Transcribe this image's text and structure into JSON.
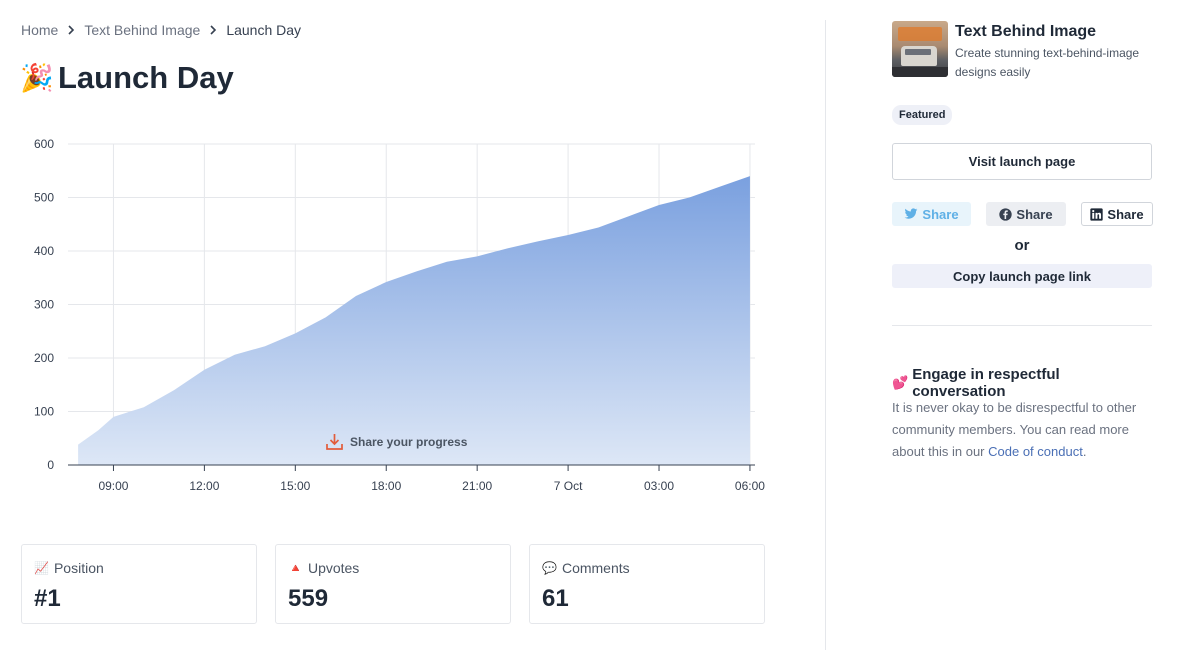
{
  "breadcrumb": {
    "items": [
      "Home",
      "Text Behind Image",
      "Launch Day"
    ]
  },
  "page": {
    "title_emoji": "🎉",
    "title": "Launch Day"
  },
  "chart_data": {
    "type": "area",
    "title": "",
    "xlabel": "",
    "ylabel": "",
    "ylim": [
      0,
      600
    ],
    "yticks": [
      0,
      100,
      200,
      300,
      400,
      500,
      600
    ],
    "xlim": [
      "06 Oct 07:30",
      "07 Oct 06:10"
    ],
    "xticks": [
      {
        "time": "06 Oct 09:00",
        "label": "09:00"
      },
      {
        "time": "06 Oct 12:00",
        "label": "12:00"
      },
      {
        "time": "06 Oct 15:00",
        "label": "15:00"
      },
      {
        "time": "06 Oct 18:00",
        "label": "18:00"
      },
      {
        "time": "06 Oct 21:00",
        "label": "21:00"
      },
      {
        "time": "07 Oct 00:00",
        "label": "7 Oct"
      },
      {
        "time": "07 Oct 03:00",
        "label": "03:00"
      },
      {
        "time": "07 Oct 06:00",
        "label": "06:00"
      }
    ],
    "grid": true,
    "series": [
      {
        "points": [
          {
            "time": "06 Oct 07:50",
            "value": 38
          },
          {
            "time": "06 Oct 08:30",
            "value": 65
          },
          {
            "time": "06 Oct 09:00",
            "value": 90
          },
          {
            "time": "06 Oct 10:00",
            "value": 108
          },
          {
            "time": "06 Oct 11:00",
            "value": 140
          },
          {
            "time": "06 Oct 12:00",
            "value": 178
          },
          {
            "time": "06 Oct 13:00",
            "value": 206
          },
          {
            "time": "06 Oct 14:00",
            "value": 222
          },
          {
            "time": "06 Oct 15:00",
            "value": 246
          },
          {
            "time": "06 Oct 16:00",
            "value": 276
          },
          {
            "time": "06 Oct 17:00",
            "value": 316
          },
          {
            "time": "06 Oct 18:00",
            "value": 342
          },
          {
            "time": "06 Oct 19:00",
            "value": 362
          },
          {
            "time": "06 Oct 20:00",
            "value": 380
          },
          {
            "time": "06 Oct 21:00",
            "value": 390
          },
          {
            "time": "06 Oct 22:00",
            "value": 405
          },
          {
            "time": "06 Oct 23:00",
            "value": 418
          },
          {
            "time": "07 Oct 00:00",
            "value": 430
          },
          {
            "time": "07 Oct 01:00",
            "value": 444
          },
          {
            "time": "07 Oct 02:00",
            "value": 465
          },
          {
            "time": "07 Oct 03:00",
            "value": 486
          },
          {
            "time": "07 Oct 04:00",
            "value": 500
          },
          {
            "time": "07 Oct 05:00",
            "value": 520
          },
          {
            "time": "07 Oct 06:00",
            "value": 540
          }
        ]
      }
    ],
    "colors": {
      "fill_top": "#7aa0df",
      "fill_bottom": "#dde7f6"
    }
  },
  "chart_action": {
    "share_progress_label": "Share your progress"
  },
  "stats": [
    {
      "icon": "📈",
      "label": "Position",
      "value": "#1"
    },
    {
      "icon": "🔺",
      "label": "Upvotes",
      "value": "559"
    },
    {
      "icon": "💬",
      "label": "Comments",
      "value": "61"
    }
  ],
  "sidebar": {
    "product_name": "Text Behind Image",
    "product_tagline": "Create stunning text-behind-image designs easily",
    "badge": "Featured",
    "visit_label": "Visit launch page",
    "share_twitter": "Share",
    "share_facebook": "Share",
    "share_linkedin": "Share",
    "or_label": "or",
    "copy_label": "Copy launch page link",
    "engage_emoji": "💕",
    "engage_title": "Engage in respectful conversation",
    "engage_text": "It is never okay to be disrespectful to other community members. You can read more about this in our ",
    "engage_link": "Code of conduct",
    "engage_end": "."
  },
  "colors": {
    "twitter": "#5fb0e6",
    "link": "#4a6fb5",
    "share_icon": "#e25c3b"
  }
}
